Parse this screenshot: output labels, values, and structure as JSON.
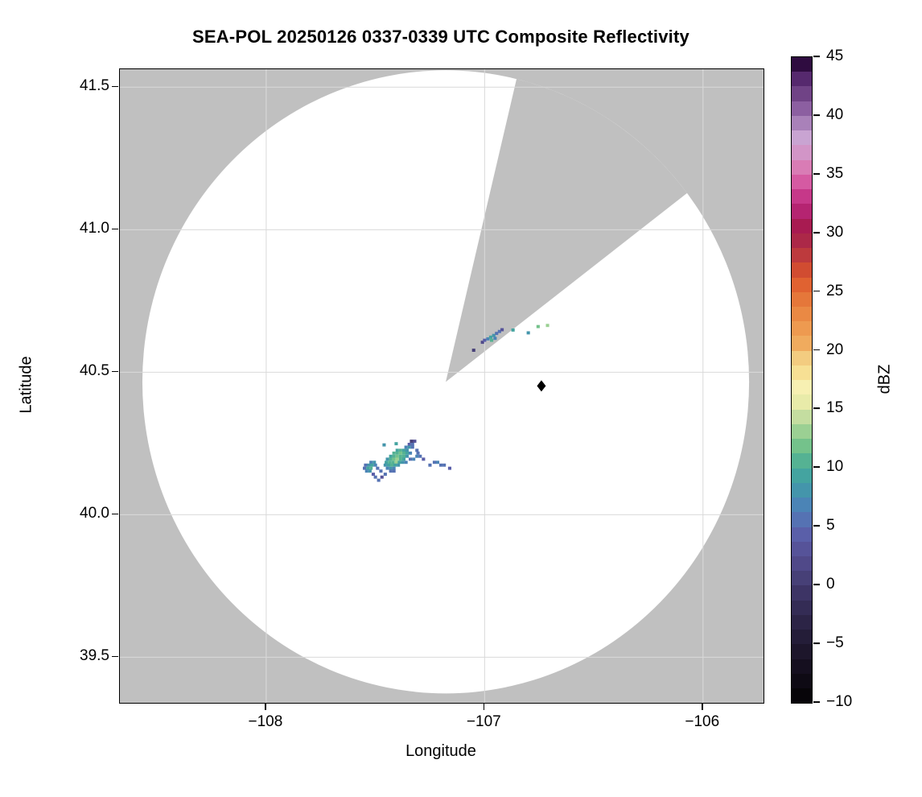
{
  "figure": {
    "title": "SEA-POL 20250126 0337-0339 UTC Composite Reflectivity",
    "xlabel": "Longitude",
    "ylabel": "Latitude"
  },
  "chart_data": {
    "type": "heatmap",
    "title": "SEA-POL 20250126 0337-0339 UTC Composite Reflectivity",
    "xlabel": "Longitude",
    "ylabel": "Latitude",
    "xlim": [
      -108.67,
      -105.723
    ],
    "ylim": [
      39.34,
      41.563
    ],
    "grid": true,
    "plot_background_color": "#ffffff",
    "nodata_color": "#c0c0c0",
    "gridline_color": "#d9d9d9",
    "x_ticks": [
      {
        "value": -108,
        "label": "−108"
      },
      {
        "value": -107,
        "label": "−107"
      },
      {
        "value": -106,
        "label": "−106"
      }
    ],
    "y_ticks": [
      {
        "value": 41.5,
        "label": "41.5"
      },
      {
        "value": 41.0,
        "label": "41.0"
      },
      {
        "value": 40.5,
        "label": "40.5"
      },
      {
        "value": 40.0,
        "label": "40.0"
      },
      {
        "value": 39.5,
        "label": "39.5"
      }
    ],
    "radar": {
      "center_lon": -107.178,
      "center_lat": 40.466,
      "radius_lon_deg": 1.389,
      "radius_lat_deg": 1.093,
      "blocked_sector_azimuth_deg": [
        13.5,
        52.7
      ],
      "coverage_color": "#ffffff"
    },
    "marker": {
      "lon": -106.74,
      "lat": 40.452,
      "shape": "diamond",
      "color": "#000000"
    },
    "colorbar": {
      "label": "dBZ",
      "min": -10,
      "max": 45,
      "band_step": 1.25,
      "ticks": [
        {
          "value": 45,
          "label": "45"
        },
        {
          "value": 40,
          "label": "40"
        },
        {
          "value": 35,
          "label": "35"
        },
        {
          "value": 30,
          "label": "30"
        },
        {
          "value": 25,
          "label": "25"
        },
        {
          "value": 20,
          "label": "20"
        },
        {
          "value": 15,
          "label": "15"
        },
        {
          "value": 10,
          "label": "10"
        },
        {
          "value": 5,
          "label": "5"
        },
        {
          "value": 0,
          "label": "0"
        },
        {
          "value": -5,
          "label": "−5"
        },
        {
          "value": -10,
          "label": "−10"
        }
      ],
      "colors_low_to_high": [
        "#070509",
        "#0e0a14",
        "#150f1f",
        "#1d162b",
        "#241d38",
        "#2c2446",
        "#342c55",
        "#3d3465",
        "#474077",
        "#504989",
        "#565399",
        "#5a5fa9",
        "#5572b3",
        "#4b84b6",
        "#4495ab",
        "#44a4a0",
        "#55b293",
        "#74c28b",
        "#9bd093",
        "#c4dda0",
        "#e8eba9",
        "#f7f0b2",
        "#f7e094",
        "#f3cc80",
        "#f0ab5e",
        "#ee9a50",
        "#ea8944",
        "#e5773a",
        "#e06231",
        "#d14c31",
        "#bd3a3d",
        "#ac2848",
        "#a81b51",
        "#b52471",
        "#c63889",
        "#d55aa2",
        "#d97cb5",
        "#d295c7",
        "#c9a4d2",
        "#a981b9",
        "#8c5fa1",
        "#704386",
        "#56296e",
        "#2f0c40"
      ]
    },
    "cells_lon_lat_dbz": [
      [
        -107.335,
        40.258,
        1
      ],
      [
        -107.32,
        40.258,
        3
      ],
      [
        -107.345,
        40.247,
        4
      ],
      [
        -107.33,
        40.247,
        6
      ],
      [
        -107.405,
        40.249,
        9
      ],
      [
        -107.46,
        40.245,
        8
      ],
      [
        -107.36,
        40.237,
        7
      ],
      [
        -107.345,
        40.237,
        8
      ],
      [
        -107.33,
        40.237,
        5
      ],
      [
        -107.4,
        40.226,
        9
      ],
      [
        -107.385,
        40.226,
        10
      ],
      [
        -107.37,
        40.226,
        9
      ],
      [
        -107.355,
        40.226,
        8
      ],
      [
        -107.31,
        40.226,
        5
      ],
      [
        -107.415,
        40.216,
        10
      ],
      [
        -107.4,
        40.216,
        11
      ],
      [
        -107.385,
        40.216,
        12
      ],
      [
        -107.37,
        40.216,
        10
      ],
      [
        -107.355,
        40.216,
        9
      ],
      [
        -107.34,
        40.216,
        7
      ],
      [
        -107.305,
        40.216,
        6
      ],
      [
        -107.43,
        40.205,
        9
      ],
      [
        -107.415,
        40.205,
        11
      ],
      [
        -107.4,
        40.205,
        12
      ],
      [
        -107.385,
        40.205,
        11
      ],
      [
        -107.37,
        40.205,
        10
      ],
      [
        -107.355,
        40.205,
        8
      ],
      [
        -107.31,
        40.205,
        7
      ],
      [
        -107.295,
        40.205,
        5
      ],
      [
        -107.445,
        40.195,
        8
      ],
      [
        -107.43,
        40.195,
        10
      ],
      [
        -107.415,
        40.195,
        12
      ],
      [
        -107.4,
        40.195,
        13
      ],
      [
        -107.385,
        40.195,
        10
      ],
      [
        -107.37,
        40.195,
        9
      ],
      [
        -107.34,
        40.195,
        6
      ],
      [
        -107.325,
        40.195,
        7
      ],
      [
        -107.28,
        40.195,
        4
      ],
      [
        -107.52,
        40.184,
        7
      ],
      [
        -107.505,
        40.184,
        8
      ],
      [
        -107.45,
        40.184,
        9
      ],
      [
        -107.435,
        40.184,
        10
      ],
      [
        -107.42,
        40.184,
        11
      ],
      [
        -107.405,
        40.184,
        13
      ],
      [
        -107.39,
        40.184,
        9
      ],
      [
        -107.375,
        40.184,
        8
      ],
      [
        -107.36,
        40.184,
        7
      ],
      [
        -107.23,
        40.184,
        6
      ],
      [
        -107.215,
        40.184,
        7
      ],
      [
        -107.545,
        40.174,
        6
      ],
      [
        -107.53,
        40.174,
        8
      ],
      [
        -107.515,
        40.174,
        9
      ],
      [
        -107.5,
        40.174,
        7
      ],
      [
        -107.455,
        40.174,
        8
      ],
      [
        -107.44,
        40.174,
        9
      ],
      [
        -107.425,
        40.174,
        10
      ],
      [
        -107.41,
        40.174,
        9
      ],
      [
        -107.395,
        40.174,
        8
      ],
      [
        -107.25,
        40.174,
        5
      ],
      [
        -107.2,
        40.174,
        6
      ],
      [
        -107.185,
        40.174,
        5
      ],
      [
        -107.55,
        40.163,
        5
      ],
      [
        -107.535,
        40.163,
        9
      ],
      [
        -107.52,
        40.163,
        10
      ],
      [
        -107.49,
        40.163,
        6
      ],
      [
        -107.445,
        40.163,
        7
      ],
      [
        -107.43,
        40.163,
        8
      ],
      [
        -107.415,
        40.163,
        7
      ],
      [
        -107.16,
        40.163,
        4
      ],
      [
        -107.54,
        40.153,
        7
      ],
      [
        -107.525,
        40.153,
        8
      ],
      [
        -107.475,
        40.153,
        5
      ],
      [
        -107.43,
        40.153,
        6
      ],
      [
        -107.415,
        40.153,
        5
      ],
      [
        -107.51,
        40.142,
        4
      ],
      [
        -107.455,
        40.142,
        5
      ],
      [
        -107.5,
        40.132,
        6
      ],
      [
        -107.47,
        40.132,
        3
      ],
      [
        -107.485,
        40.121,
        5
      ],
      [
        -107.01,
        40.605,
        2
      ],
      [
        -107.0,
        40.612,
        4
      ],
      [
        -106.985,
        40.617,
        7
      ],
      [
        -106.972,
        40.623,
        9
      ],
      [
        -106.958,
        40.629,
        8
      ],
      [
        -106.945,
        40.636,
        6
      ],
      [
        -106.932,
        40.643,
        5
      ],
      [
        -106.92,
        40.649,
        3
      ],
      [
        -106.968,
        40.612,
        10
      ],
      [
        -106.952,
        40.619,
        7
      ],
      [
        -107.05,
        40.577,
        1
      ],
      [
        -106.87,
        40.648,
        9
      ],
      [
        -106.8,
        40.638,
        8
      ],
      [
        -106.755,
        40.66,
        12
      ],
      [
        -106.712,
        40.664,
        13
      ]
    ]
  }
}
